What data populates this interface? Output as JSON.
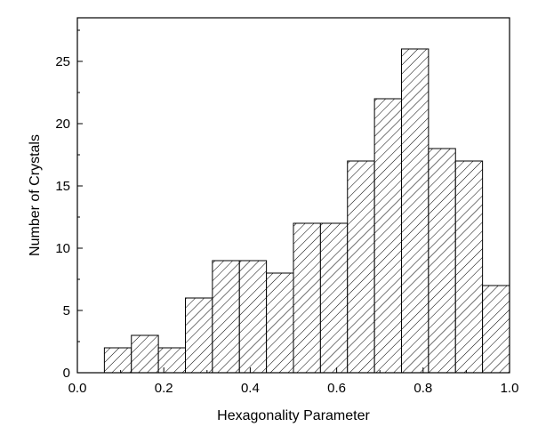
{
  "chart_data": {
    "type": "bar",
    "title": "",
    "xlabel": "Hexagonality Parameter",
    "ylabel": "Number of Crystals",
    "xlim": [
      0.0,
      1.0
    ],
    "ylim": [
      0,
      28.5
    ],
    "x_ticks": [
      "0.0",
      "0.2",
      "0.4",
      "0.6",
      "0.8",
      "1.0"
    ],
    "y_ticks": [
      "0",
      "5",
      "10",
      "15",
      "20",
      "25"
    ],
    "bin_width": 0.0625,
    "bins": [
      {
        "start": 0.0625,
        "end": 0.125,
        "value": 2
      },
      {
        "start": 0.125,
        "end": 0.1875,
        "value": 3
      },
      {
        "start": 0.1875,
        "end": 0.25,
        "value": 2
      },
      {
        "start": 0.25,
        "end": 0.3125,
        "value": 6
      },
      {
        "start": 0.3125,
        "end": 0.375,
        "value": 9
      },
      {
        "start": 0.375,
        "end": 0.4375,
        "value": 9
      },
      {
        "start": 0.4375,
        "end": 0.5,
        "value": 8
      },
      {
        "start": 0.5,
        "end": 0.5625,
        "value": 12
      },
      {
        "start": 0.5625,
        "end": 0.625,
        "value": 12
      },
      {
        "start": 0.625,
        "end": 0.6875,
        "value": 17
      },
      {
        "start": 0.6875,
        "end": 0.75,
        "value": 22
      },
      {
        "start": 0.75,
        "end": 0.8125,
        "value": 26
      },
      {
        "start": 0.8125,
        "end": 0.875,
        "value": 18
      },
      {
        "start": 0.875,
        "end": 0.9375,
        "value": 17
      },
      {
        "start": 0.9375,
        "end": 1.0,
        "value": 7
      }
    ],
    "fill": "diagonal-hatch",
    "grid": false,
    "legend": "none"
  }
}
